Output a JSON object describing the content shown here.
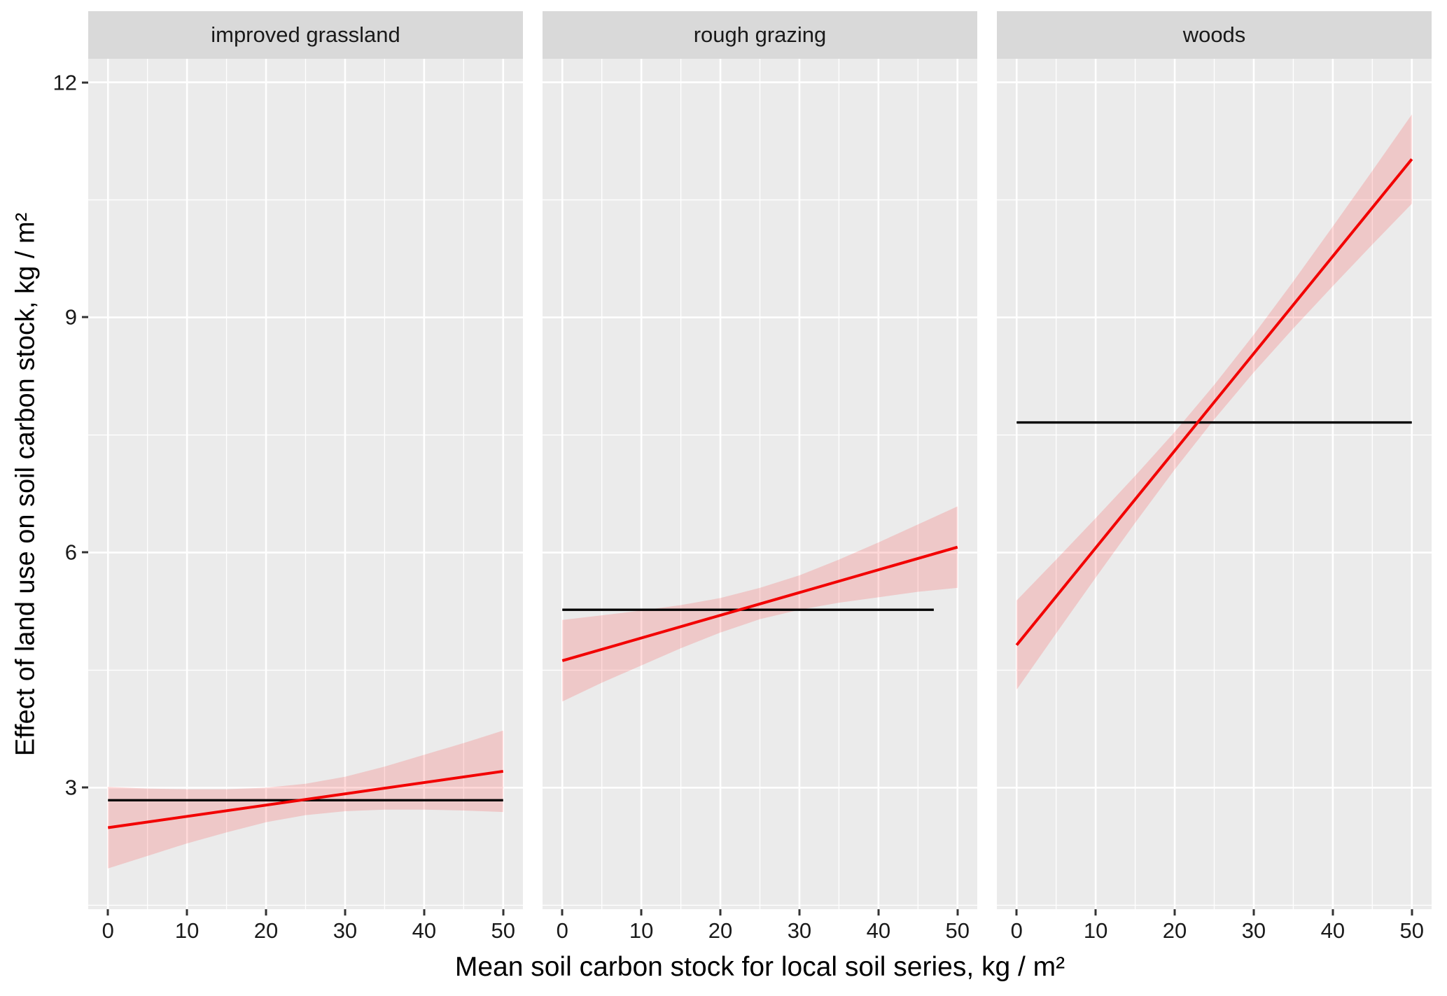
{
  "chart_data": {
    "type": "line",
    "title": "",
    "xlabel": "Mean soil carbon stock for local soil series, kg / m²",
    "ylabel": "Effect of land use on soil carbon stock, kg / m²",
    "xlim": [
      -2.5,
      52.5
    ],
    "ylim": [
      1.45,
      12.3
    ],
    "x_ticks": [
      0,
      10,
      20,
      30,
      40,
      50
    ],
    "y_ticks": [
      3,
      6,
      9,
      12
    ],
    "x_minor": [
      5,
      15,
      25,
      35,
      45
    ],
    "y_minor": [
      1.5,
      4.5,
      7.5,
      10.5
    ],
    "grid": "on",
    "legend": "none",
    "colors": {
      "fit": "#F20000",
      "ribbon": "rgba(255,0,0,0.15)",
      "hline": "#000000",
      "panel_bg": "#EBEBEB",
      "grid": "#FFFFFF",
      "strip_bg": "#D9D9D9"
    },
    "facets": [
      {
        "label": "improved grassland",
        "hline": {
          "x": [
            0,
            50
          ],
          "y": 2.84
        },
        "fit": {
          "x": [
            0,
            50
          ],
          "y": [
            2.49,
            3.21
          ]
        },
        "ribbon": {
          "x": [
            0,
            5,
            10,
            15,
            20,
            25,
            30,
            35,
            40,
            45,
            50
          ],
          "lower": [
            1.97,
            2.13,
            2.29,
            2.43,
            2.56,
            2.65,
            2.7,
            2.72,
            2.72,
            2.71,
            2.69
          ],
          "upper": [
            3.01,
            2.99,
            2.98,
            2.98,
            3.0,
            3.05,
            3.14,
            3.27,
            3.42,
            3.57,
            3.73
          ]
        }
      },
      {
        "label": "rough grazing",
        "hline": {
          "x": [
            0,
            47
          ],
          "y": 5.27
        },
        "fit": {
          "x": [
            0,
            50
          ],
          "y": [
            4.62,
            6.07
          ]
        },
        "ribbon": {
          "x": [
            0,
            5,
            10,
            15,
            20,
            25,
            30,
            35,
            40,
            45,
            50
          ],
          "lower": [
            4.1,
            4.34,
            4.56,
            4.78,
            4.98,
            5.15,
            5.27,
            5.36,
            5.43,
            5.5,
            5.55
          ],
          "upper": [
            5.14,
            5.2,
            5.26,
            5.33,
            5.42,
            5.55,
            5.71,
            5.91,
            6.13,
            6.36,
            6.59
          ]
        }
      },
      {
        "label": "woods",
        "hline": {
          "x": [
            0,
            50
          ],
          "y": 7.66
        },
        "fit": {
          "x": [
            0,
            50
          ],
          "y": [
            4.82,
            11.02
          ]
        },
        "ribbon": {
          "x": [
            0,
            5,
            10,
            15,
            20,
            25,
            30,
            35,
            40,
            45,
            50
          ],
          "lower": [
            4.25,
            4.97,
            5.68,
            6.38,
            7.06,
            7.7,
            8.3,
            8.86,
            9.4,
            9.93,
            10.45
          ],
          "upper": [
            5.39,
            5.91,
            6.44,
            6.98,
            7.54,
            8.14,
            8.78,
            9.46,
            10.16,
            10.87,
            11.59
          ]
        }
      }
    ]
  }
}
